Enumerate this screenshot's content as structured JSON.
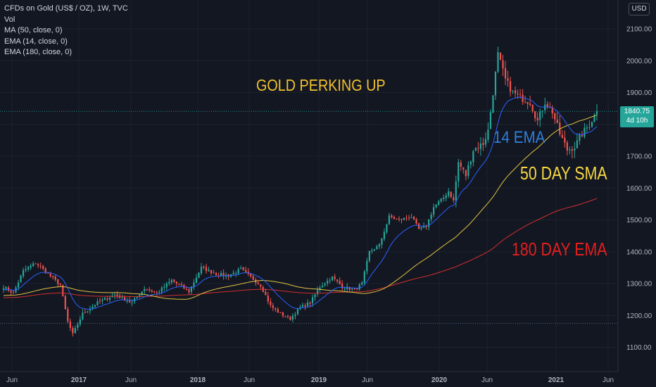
{
  "header": {
    "symbol_line": "CFDs on Gold (US$ / OZ), 1W, TVC",
    "indicators": [
      "Vol",
      "MA (50, close, 0)",
      "EMA (14, close, 0)",
      "EMA (180, close, 0)"
    ]
  },
  "currency_button": "USD",
  "price_badge": {
    "price": "1840.75",
    "countdown": "4d 10h"
  },
  "annotations": {
    "title": "GOLD PERKING UP",
    "ema14": "14 EMA",
    "sma50": "50 DAY SMA",
    "ema180": "180 DAY EMA"
  },
  "colors": {
    "background": "#131722",
    "up": "#26a69a",
    "down": "#ef5350",
    "ema14": "#2962ff",
    "sma50": "#e0c341",
    "ema180": "#d32f2f",
    "title_text": "#f2c12e",
    "ema14_text": "#2f7fd8",
    "sma50_text": "#f7d843",
    "ema180_text": "#e21f1f"
  },
  "chart_data": {
    "type": "candlestick",
    "y_axis_ticks": [
      "1100.00",
      "1200.00",
      "1300.00",
      "1400.00",
      "1500.00",
      "1600.00",
      "1700.00",
      "1800.00",
      "1900.00",
      "2000.00",
      "2100.00"
    ],
    "ylim": [
      1067,
      2145
    ],
    "x_axis_ticks": [
      "Jun",
      "2017",
      "Jun",
      "2018",
      "Jun",
      "2019",
      "Jun",
      "2020",
      "Jun",
      "2021",
      "Jun"
    ],
    "current_price": 1840.75,
    "reference_line_price": 1175,
    "close_anchors": [
      [
        0,
        1290
      ],
      [
        4,
        1270
      ],
      [
        8,
        1340
      ],
      [
        13,
        1365
      ],
      [
        18,
        1330
      ],
      [
        23,
        1295
      ],
      [
        26,
        1180
      ],
      [
        28,
        1140
      ],
      [
        32,
        1205
      ],
      [
        38,
        1240
      ],
      [
        45,
        1265
      ],
      [
        52,
        1240
      ],
      [
        57,
        1285
      ],
      [
        62,
        1270
      ],
      [
        68,
        1310
      ],
      [
        72,
        1290
      ],
      [
        75,
        1275
      ],
      [
        80,
        1350
      ],
      [
        86,
        1330
      ],
      [
        91,
        1325
      ],
      [
        96,
        1345
      ],
      [
        100,
        1320
      ],
      [
        104,
        1295
      ],
      [
        108,
        1230
      ],
      [
        112,
        1205
      ],
      [
        116,
        1190
      ],
      [
        120,
        1225
      ],
      [
        124,
        1240
      ],
      [
        128,
        1290
      ],
      [
        133,
        1320
      ],
      [
        137,
        1290
      ],
      [
        142,
        1280
      ],
      [
        145,
        1300
      ],
      [
        148,
        1400
      ],
      [
        152,
        1420
      ],
      [
        156,
        1510
      ],
      [
        160,
        1500
      ],
      [
        165,
        1510
      ],
      [
        168,
        1470
      ],
      [
        171,
        1480
      ],
      [
        174,
        1540
      ],
      [
        178,
        1570
      ],
      [
        180,
        1590
      ],
      [
        182,
        1560
      ],
      [
        184,
        1680
      ],
      [
        187,
        1640
      ],
      [
        190,
        1720
      ],
      [
        194,
        1740
      ],
      [
        196,
        1780
      ],
      [
        198,
        1900
      ],
      [
        200,
        2020
      ],
      [
        203,
        1940
      ],
      [
        206,
        1900
      ],
      [
        210,
        1880
      ],
      [
        213,
        1870
      ],
      [
        216,
        1810
      ],
      [
        219,
        1870
      ],
      [
        222,
        1840
      ],
      [
        225,
        1770
      ],
      [
        228,
        1720
      ],
      [
        231,
        1730
      ],
      [
        234,
        1770
      ],
      [
        237,
        1800
      ],
      [
        240,
        1840.75
      ]
    ],
    "series": [
      {
        "name": "14 EMA",
        "period": 14,
        "kind": "ema"
      },
      {
        "name": "50 DAY SMA",
        "period": 50,
        "kind": "sma"
      },
      {
        "name": "180 DAY EMA",
        "period": 180,
        "kind": "ema"
      }
    ],
    "grid": true
  }
}
